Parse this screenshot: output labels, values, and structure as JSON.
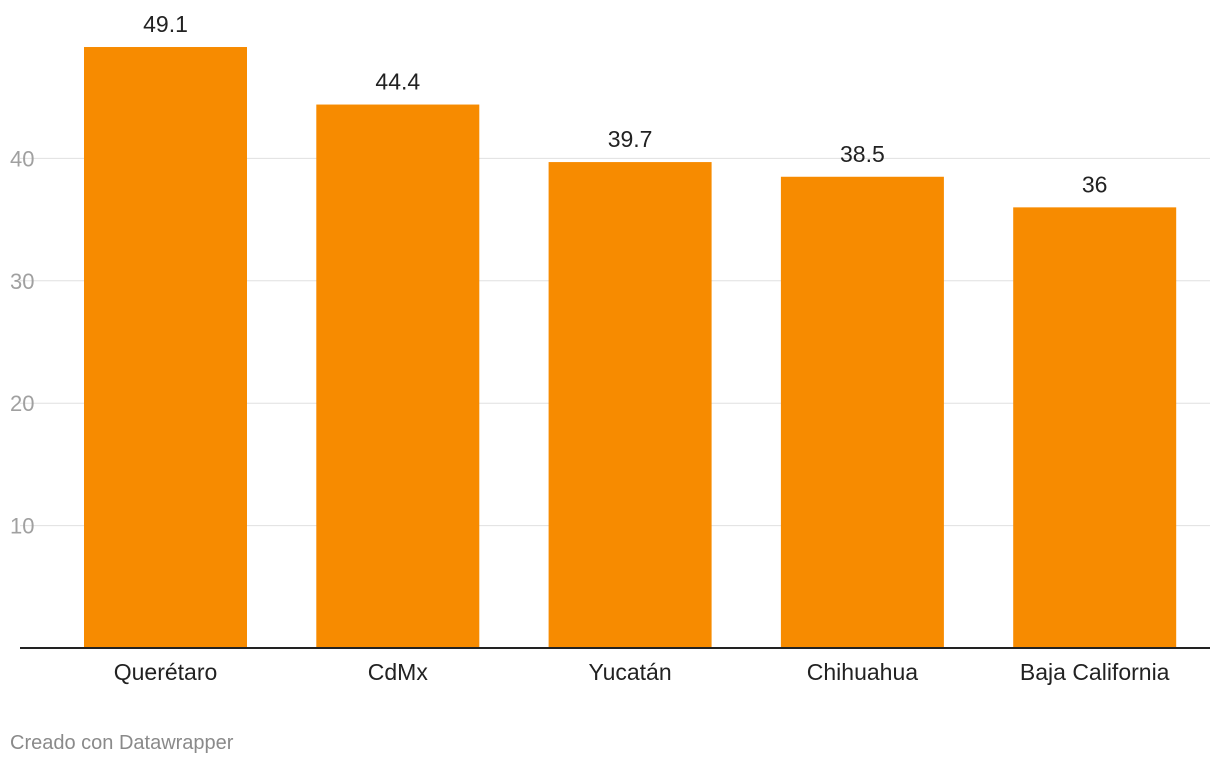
{
  "chart_data": {
    "type": "bar",
    "categories": [
      "Querétaro",
      "CdMx",
      "Yucatán",
      "Chihuahua",
      "Baja California"
    ],
    "values": [
      49.1,
      44.4,
      39.7,
      38.5,
      36
    ],
    "value_labels": [
      "49.1",
      "44.4",
      "39.7",
      "38.5",
      "36"
    ],
    "y_ticks": [
      10,
      20,
      30,
      40
    ],
    "ylim": [
      0,
      50
    ],
    "grid": true,
    "bar_color": "#f78b00",
    "title": "",
    "xlabel": "",
    "ylabel": ""
  },
  "footer": {
    "credit": "Creado con Datawrapper"
  }
}
